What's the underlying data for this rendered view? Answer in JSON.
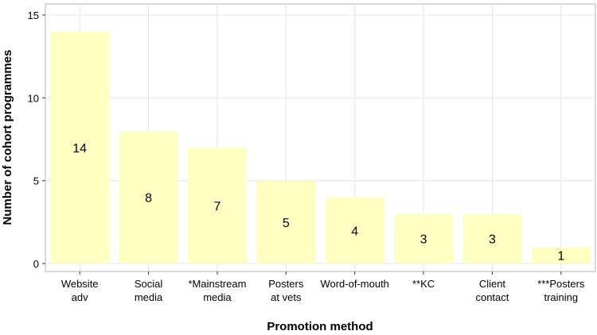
{
  "chart_data": {
    "type": "bar",
    "x_label": "Promotion method",
    "y_label": "Number of cohort programmes",
    "categories": [
      "Website\nadv",
      "Social\nmedia",
      "*Mainstream\nmedia",
      "Posters\nat vets",
      "Word-of-mouth",
      "**KC",
      "Client\ncontact",
      "***Posters\ntraining"
    ],
    "values": [
      14,
      8,
      7,
      5,
      4,
      3,
      3,
      1
    ],
    "color": "#ffffc2",
    "ylim": [
      -0.48,
      15.67
    ],
    "yticks": [
      0,
      5,
      10,
      15
    ],
    "grid": true
  }
}
